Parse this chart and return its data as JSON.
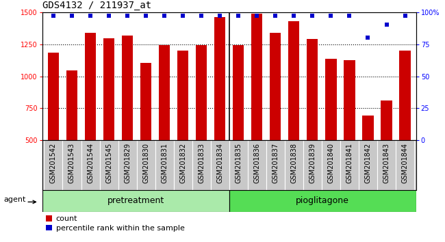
{
  "title": "GDS4132 / 211937_at",
  "samples": [
    "GSM201542",
    "GSM201543",
    "GSM201544",
    "GSM201545",
    "GSM201829",
    "GSM201830",
    "GSM201831",
    "GSM201832",
    "GSM201833",
    "GSM201834",
    "GSM201835",
    "GSM201836",
    "GSM201837",
    "GSM201838",
    "GSM201839",
    "GSM201840",
    "GSM201841",
    "GSM201842",
    "GSM201843",
    "GSM201844"
  ],
  "counts": [
    1185,
    1048,
    1340,
    1295,
    1315,
    1105,
    1240,
    1200,
    1240,
    1460,
    1245,
    1490,
    1340,
    1430,
    1290,
    1135,
    1125,
    695,
    810,
    1200
  ],
  "percentiles": [
    97,
    97,
    97,
    97,
    97,
    97,
    97,
    97,
    97,
    97,
    97,
    97,
    97,
    97,
    97,
    97,
    97,
    80,
    90,
    97
  ],
  "group1_label": "pretreatment",
  "group1_count": 10,
  "group2_label": "pioglitagone",
  "group2_count": 10,
  "bar_color": "#cc0000",
  "dot_color": "#0000cc",
  "ylim_left": [
    500,
    1500
  ],
  "ylim_right": [
    0,
    100
  ],
  "yticks_left": [
    500,
    750,
    1000,
    1250,
    1500
  ],
  "yticks_right": [
    0,
    25,
    50,
    75,
    100
  ],
  "grid_lines": [
    750,
    1000,
    1250
  ],
  "tick_bg_color": "#c8c8c8",
  "group_color_1": "#aaeaaa",
  "group_color_2": "#55dd55",
  "agent_label": "agent",
  "legend_count_label": "count",
  "legend_pct_label": "percentile rank within the sample",
  "title_fontsize": 10,
  "tick_fontsize": 7,
  "label_fontsize": 8,
  "group_fontsize": 9
}
